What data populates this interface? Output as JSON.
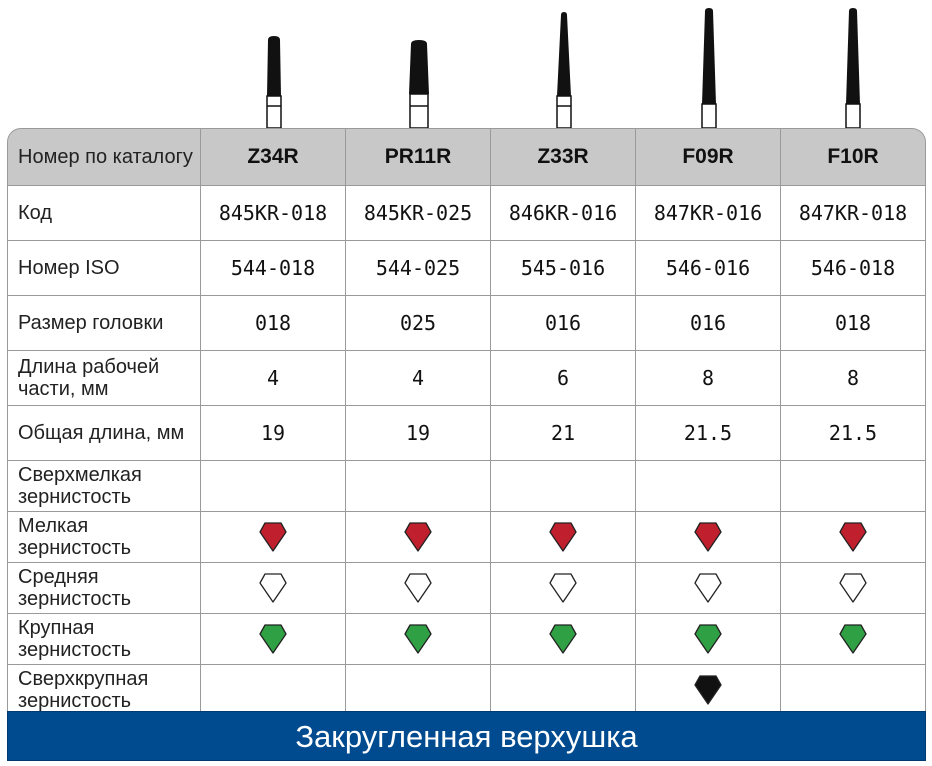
{
  "header": {
    "catalog_label": "Номер по каталогу",
    "columns": [
      "Z34R",
      "PR11R",
      "Z33R",
      "F09R",
      "F10R"
    ]
  },
  "rows": {
    "code": {
      "label": "Код",
      "values": [
        "845KR-018",
        "845KR-025",
        "846KR-016",
        "847KR-016",
        "847KR-018"
      ]
    },
    "iso": {
      "label": "Номер ISO",
      "values": [
        "544-018",
        "544-025",
        "545-016",
        "546-016",
        "546-018"
      ]
    },
    "head_size": {
      "label": "Размер головки",
      "values": [
        "018",
        "025",
        "016",
        "016",
        "018"
      ]
    },
    "working_length": {
      "label": "Длина рабочей части, мм",
      "values": [
        "4",
        "4",
        "6",
        "8",
        "8"
      ]
    },
    "total_length": {
      "label": "Общая длина, мм",
      "values": [
        "19",
        "19",
        "21",
        "21.5",
        "21.5"
      ]
    },
    "grit_extra_fine": {
      "label": "Сверхмелкая зернистость",
      "marks": [
        false,
        false,
        false,
        false,
        false
      ]
    },
    "grit_fine": {
      "label": "Мелкая зернистость",
      "marks": [
        true,
        true,
        true,
        true,
        true
      ]
    },
    "grit_medium": {
      "label": "Средняя зернистость",
      "marks": [
        true,
        true,
        true,
        true,
        true
      ]
    },
    "grit_coarse": {
      "label": "Крупная зернистость",
      "marks": [
        true,
        true,
        true,
        true,
        true
      ]
    },
    "grit_extra_coarse": {
      "label": "Сверхкрупная зернистость",
      "marks": [
        false,
        false,
        false,
        true,
        false
      ]
    }
  },
  "gem_colors": {
    "fine": "#c0202e",
    "medium": "#ffffff",
    "coarse": "#2fa043",
    "extra_coarse": "#111111"
  },
  "footer": {
    "title": "Закругленная верхушка"
  }
}
